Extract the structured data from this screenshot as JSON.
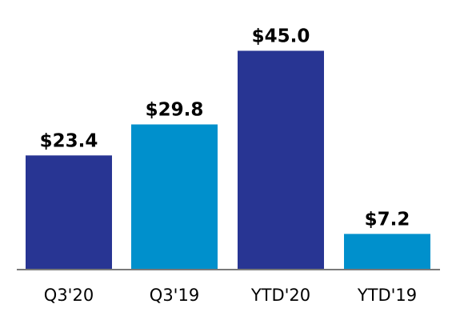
{
  "chart_data": {
    "type": "bar",
    "categories": [
      "Q3'20",
      "Q3'19",
      "YTD'20",
      "YTD'19"
    ],
    "values": [
      23.4,
      29.8,
      45.0,
      7.2
    ],
    "value_labels": [
      "$23.4",
      "$29.8",
      "$45.0",
      "$7.2"
    ],
    "ylim": [
      0,
      53.5
    ],
    "grid": false,
    "legend": "none",
    "bar_colors": [
      "#283593",
      "#0090CC",
      "#283593",
      "#0090CC"
    ],
    "axis_color": "#7a7a7a"
  }
}
